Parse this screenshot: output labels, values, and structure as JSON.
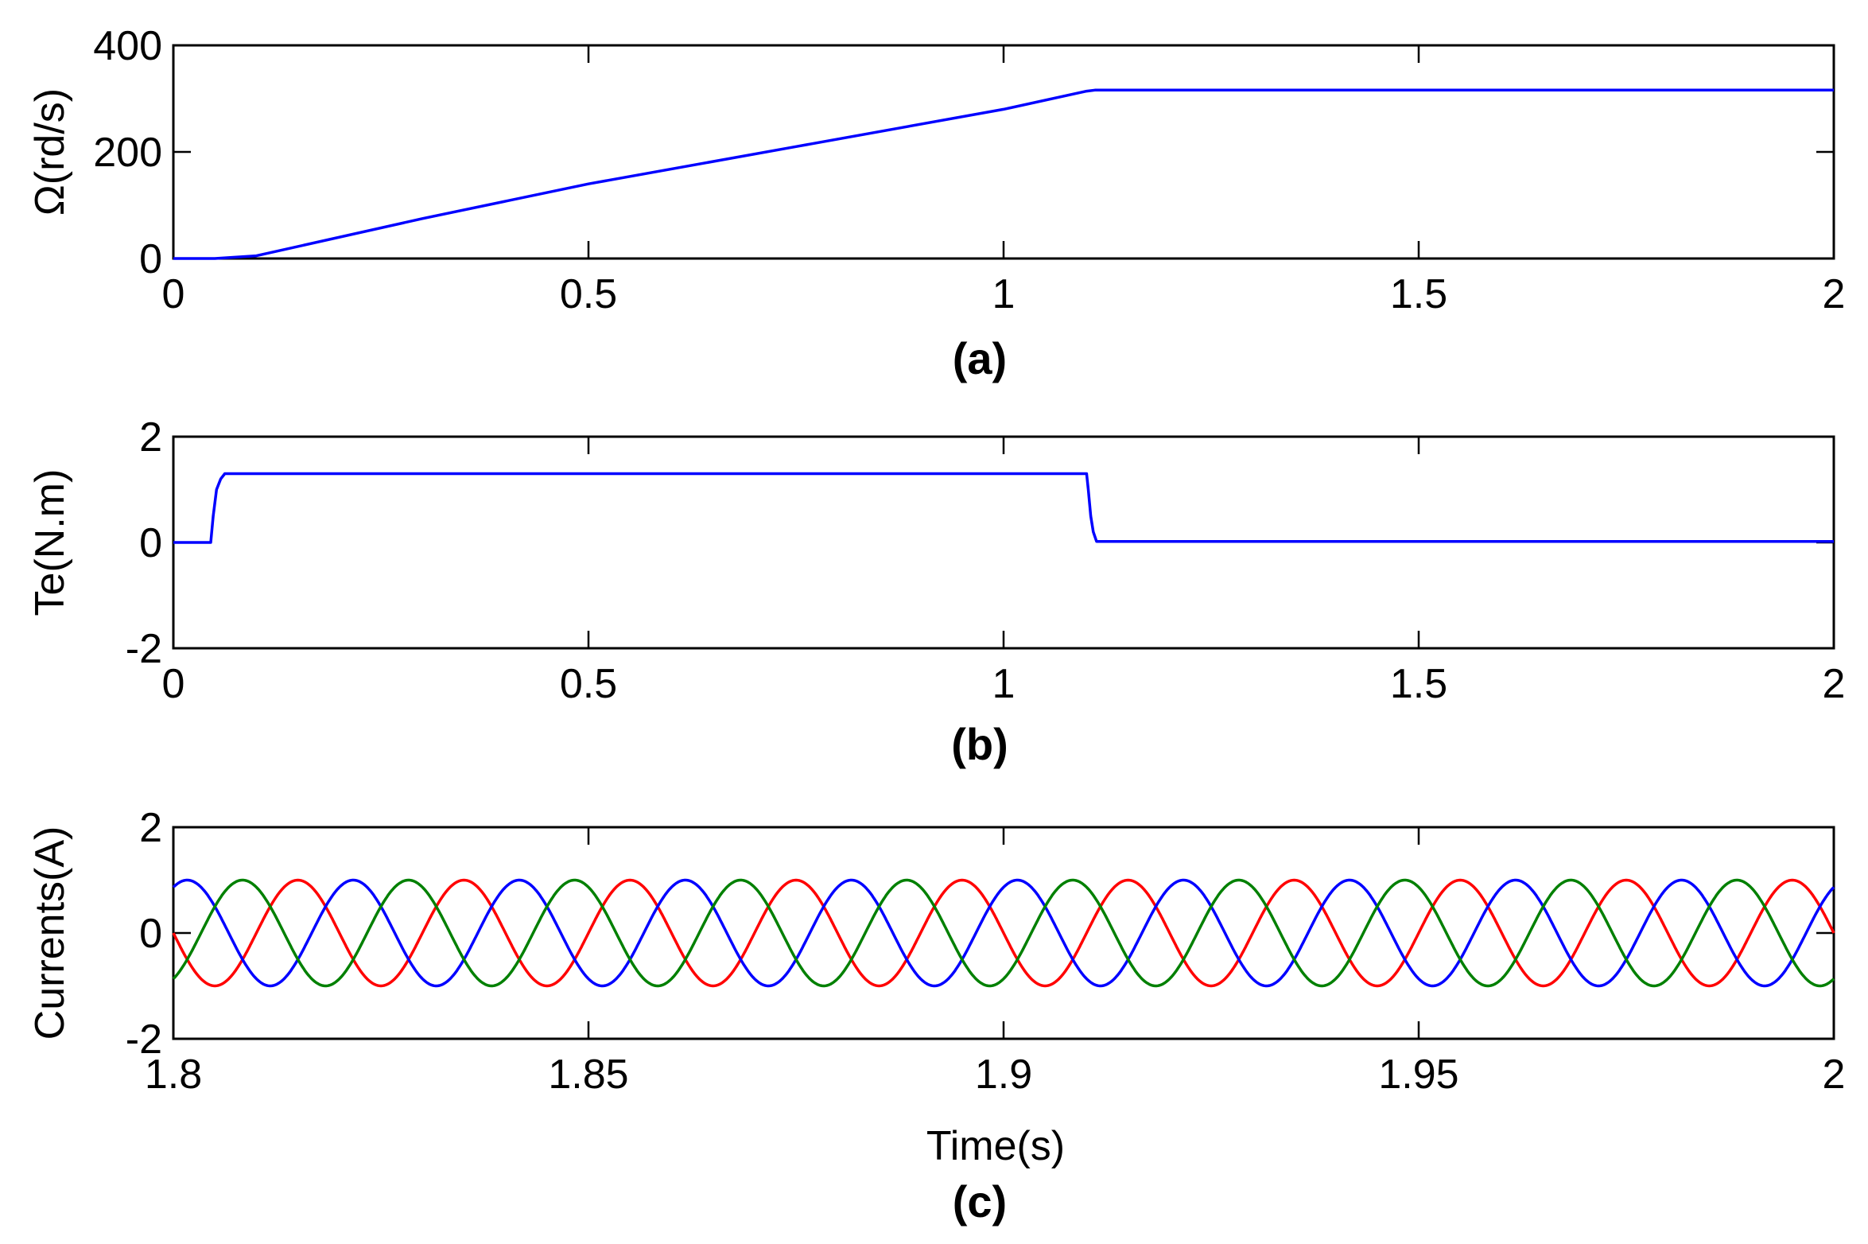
{
  "chart_data": [
    {
      "type": "line",
      "id": "speed",
      "caption": "(a)",
      "xlabel": "",
      "ylabel": "Ω(rd/s)",
      "xlim": [
        0,
        2
      ],
      "ylim": [
        0,
        400
      ],
      "xticks": [
        0,
        0.5,
        1,
        1.5,
        2
      ],
      "xtick_labels": [
        "0",
        "0.5",
        "1",
        "1.5",
        "2"
      ],
      "yticks": [
        0,
        200,
        400
      ],
      "ytick_labels": [
        "0",
        "200",
        "400"
      ],
      "grid": false,
      "series": [
        {
          "color": "#0000ff",
          "x": [
            0,
            0.05,
            0.1,
            0.3,
            0.5,
            0.75,
            1.0,
            1.1,
            1.11,
            2.0
          ],
          "y": [
            0,
            0,
            5,
            75,
            140,
            210,
            280,
            314,
            316,
            316
          ]
        }
      ]
    },
    {
      "type": "line",
      "id": "torque",
      "caption": "(b)",
      "xlabel": "",
      "ylabel": "Te(N.m)",
      "xlim": [
        0,
        2
      ],
      "ylim": [
        -2,
        2
      ],
      "xticks": [
        0,
        0.5,
        1,
        1.5,
        2
      ],
      "xtick_labels": [
        "0",
        "0.5",
        "1",
        "1.5",
        "2"
      ],
      "yticks": [
        -2,
        0,
        2
      ],
      "ytick_labels": [
        "-2",
        "0",
        "2"
      ],
      "grid": false,
      "series": [
        {
          "color": "#0000ff",
          "x": [
            0,
            0.045,
            0.048,
            0.052,
            0.057,
            0.062,
            0.07,
            1.1,
            1.102,
            1.105,
            1.108,
            1.112,
            2.0
          ],
          "y": [
            0,
            0,
            0.5,
            1.0,
            1.2,
            1.3,
            1.3,
            1.3,
            1.0,
            0.5,
            0.2,
            0.02,
            0.02
          ]
        }
      ]
    },
    {
      "type": "line",
      "id": "currents",
      "caption": "(c)",
      "xlabel": "Time(s)",
      "ylabel": "Currents(A)",
      "xlim": [
        1.8,
        2.0
      ],
      "ylim": [
        -2,
        2
      ],
      "xticks": [
        1.8,
        1.85,
        1.9,
        1.95,
        2.0
      ],
      "xtick_labels": [
        "1.8",
        "1.85",
        "1.9",
        "1.95",
        "2"
      ],
      "yticks": [
        -2,
        0,
        2
      ],
      "ytick_labels": [
        "-2",
        "0",
        "2"
      ],
      "grid": false,
      "series": [
        {
          "color": "#ff0000",
          "amplitude": 1.0,
          "frequency_hz": 50,
          "phase_deg": 180
        },
        {
          "color": "#0000ff",
          "amplitude": 1.0,
          "frequency_hz": 50,
          "phase_deg": 60
        },
        {
          "color": "#008000",
          "amplitude": 1.0,
          "frequency_hz": 50,
          "phase_deg": -60
        }
      ]
    }
  ]
}
